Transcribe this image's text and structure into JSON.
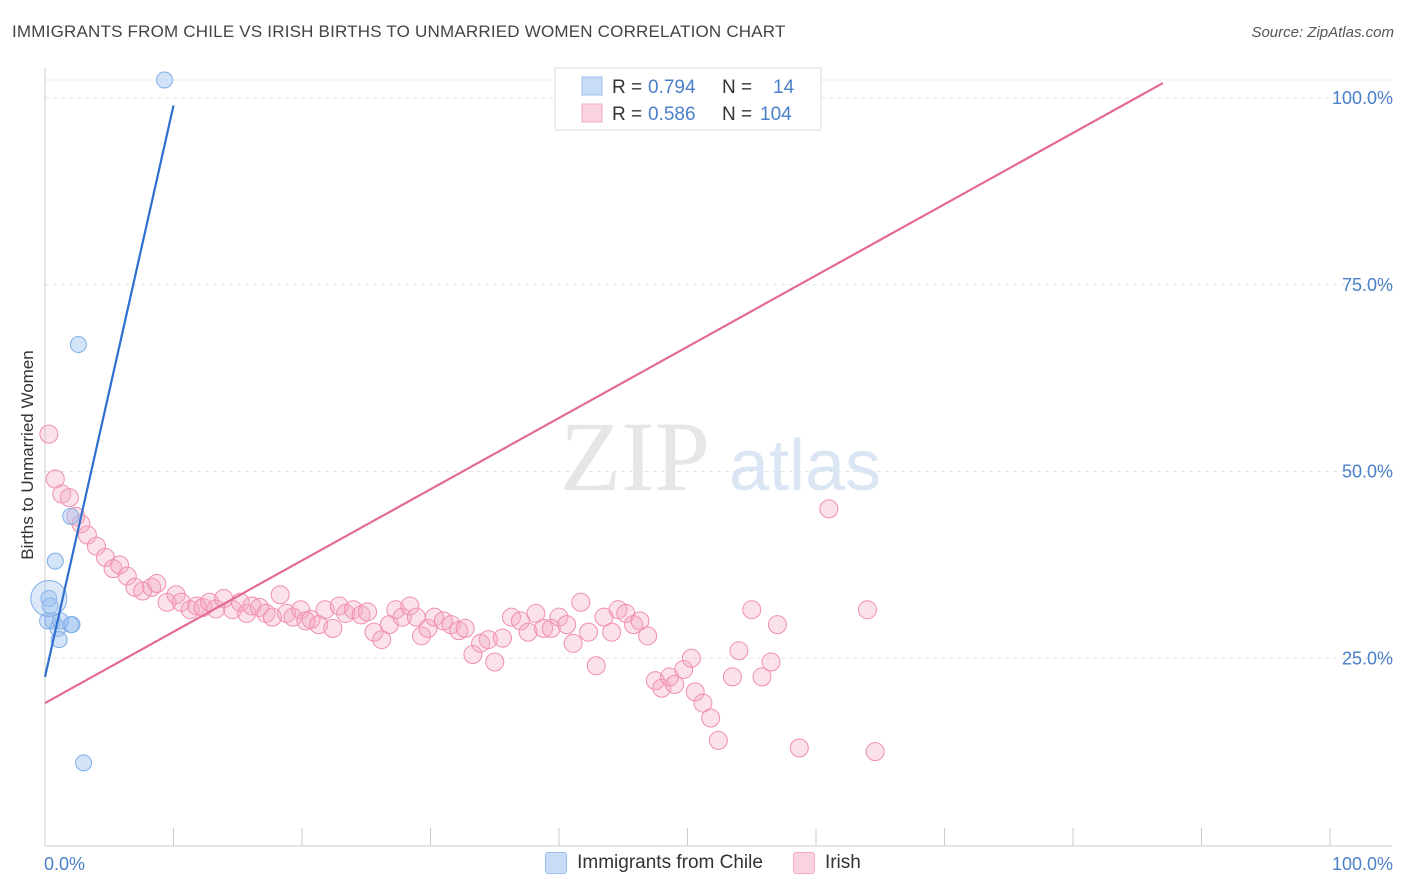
{
  "title": "IMMIGRANTS FROM CHILE VS IRISH BIRTHS TO UNMARRIED WOMEN CORRELATION CHART",
  "source": "Source: ZipAtlas.com",
  "watermark": {
    "zip": "ZIP",
    "atlas": "atlas"
  },
  "colors": {
    "blue": "#9dc0ef",
    "blue_line": "#2f6fd0",
    "pink": "#f4a9c0",
    "pink_line": "#e36b93",
    "tick": "#4a7fc9"
  },
  "chart_data": {
    "type": "scatter",
    "title": "IMMIGRANTS FROM CHILE VS IRISH BIRTHS TO UNMARRIED WOMEN CORRELATION CHART",
    "xlabel": "",
    "ylabel": "Births to Unmarried Women",
    "xlim": [
      0,
      100
    ],
    "ylim": [
      0,
      100
    ],
    "x_tick_labels": [
      "0.0%",
      "100.0%"
    ],
    "y_ticks": [
      25,
      50,
      75,
      100
    ],
    "y_tick_labels": [
      "25.0%",
      "50.0%",
      "75.0%",
      "100.0%"
    ],
    "legend_top": [
      {
        "r_label": "R = ",
        "r_value": "0.794",
        "n_label": "N = ",
        "n_value": "14"
      },
      {
        "r_label": "R = ",
        "r_value": "0.586",
        "n_label": "N = ",
        "n_value": "104"
      }
    ],
    "series": [
      {
        "name": "Immigrants from Chile",
        "color": "#9dc0ef",
        "trend": [
          [
            0,
            22.5
          ],
          [
            10,
            99
          ]
        ],
        "points": [
          [
            9.3,
            102.5
          ],
          [
            2.6,
            67
          ],
          [
            2.0,
            44
          ],
          [
            0.8,
            38
          ],
          [
            0.3,
            33
          ],
          [
            0.4,
            32
          ],
          [
            0.2,
            30
          ],
          [
            0.6,
            30
          ],
          [
            1.0,
            29
          ],
          [
            2.0,
            29.5
          ],
          [
            2.1,
            29.5
          ],
          [
            1.2,
            30
          ],
          [
            1.1,
            27.5
          ],
          [
            3.0,
            11
          ]
        ]
      },
      {
        "name": "Irish",
        "color": "#f4a9c0",
        "trend": [
          [
            0,
            19
          ],
          [
            87,
            102
          ]
        ],
        "points": [
          [
            0.3,
            55
          ],
          [
            0.8,
            49
          ],
          [
            1.3,
            47
          ],
          [
            1.9,
            46.5
          ],
          [
            2.4,
            44
          ],
          [
            2.8,
            43
          ],
          [
            3.3,
            41.5
          ],
          [
            4.0,
            40
          ],
          [
            4.7,
            38.5
          ],
          [
            5.3,
            37
          ],
          [
            5.8,
            37.5
          ],
          [
            6.4,
            36
          ],
          [
            7.0,
            34.5
          ],
          [
            7.6,
            34
          ],
          [
            8.3,
            34.5
          ],
          [
            8.7,
            35
          ],
          [
            9.5,
            32.5
          ],
          [
            10.2,
            33.5
          ],
          [
            10.6,
            32.5
          ],
          [
            11.3,
            31.5
          ],
          [
            11.8,
            32
          ],
          [
            12.3,
            31.8
          ],
          [
            12.8,
            32.5
          ],
          [
            13.3,
            31.6
          ],
          [
            13.9,
            33
          ],
          [
            14.6,
            31.5
          ],
          [
            15.2,
            32.5
          ],
          [
            15.7,
            31
          ],
          [
            16.1,
            32
          ],
          [
            16.7,
            31.8
          ],
          [
            17.2,
            31
          ],
          [
            17.7,
            30.5
          ],
          [
            18.3,
            33.5
          ],
          [
            18.8,
            31
          ],
          [
            19.3,
            30.5
          ],
          [
            19.9,
            31.5
          ],
          [
            20.3,
            30
          ],
          [
            20.7,
            30.2
          ],
          [
            21.3,
            29.5
          ],
          [
            21.8,
            31.5
          ],
          [
            22.4,
            29
          ],
          [
            22.9,
            32
          ],
          [
            23.4,
            31
          ],
          [
            24.0,
            31.5
          ],
          [
            24.6,
            30.8
          ],
          [
            25.1,
            31.2
          ],
          [
            25.6,
            28.5
          ],
          [
            26.2,
            27.5
          ],
          [
            26.8,
            29.5
          ],
          [
            27.3,
            31.5
          ],
          [
            27.8,
            30.5
          ],
          [
            28.4,
            32
          ],
          [
            28.9,
            30.5
          ],
          [
            29.3,
            28
          ],
          [
            29.8,
            29
          ],
          [
            30.3,
            30.5
          ],
          [
            31.0,
            30
          ],
          [
            31.6,
            29.5
          ],
          [
            32.2,
            28.7
          ],
          [
            32.7,
            29
          ],
          [
            33.3,
            25.5
          ],
          [
            33.9,
            27
          ],
          [
            34.5,
            27.5
          ],
          [
            35.0,
            24.5
          ],
          [
            35.6,
            27.7
          ],
          [
            36.3,
            30.5
          ],
          [
            37.0,
            30
          ],
          [
            37.6,
            28.5
          ],
          [
            38.2,
            31
          ],
          [
            38.8,
            29
          ],
          [
            39.4,
            29
          ],
          [
            40.0,
            30.5
          ],
          [
            40.6,
            29.5
          ],
          [
            41.1,
            27
          ],
          [
            41.7,
            32.5
          ],
          [
            42.3,
            28.5
          ],
          [
            42.9,
            24
          ],
          [
            43.5,
            30.5
          ],
          [
            44.1,
            28.5
          ],
          [
            44.6,
            31.5
          ],
          [
            45.2,
            31
          ],
          [
            45.8,
            29.5
          ],
          [
            46.3,
            30
          ],
          [
            46.9,
            28
          ],
          [
            47.5,
            22
          ],
          [
            48.0,
            21
          ],
          [
            48.6,
            22.5
          ],
          [
            49.0,
            21.5
          ],
          [
            49.7,
            23.5
          ],
          [
            50.3,
            25
          ],
          [
            50.6,
            20.5
          ],
          [
            51.2,
            19
          ],
          [
            51.8,
            17
          ],
          [
            52.4,
            14
          ],
          [
            53.5,
            22.5
          ],
          [
            54.0,
            26
          ],
          [
            55.0,
            31.5
          ],
          [
            55.8,
            22.5
          ],
          [
            56.5,
            24.5
          ],
          [
            57.0,
            29.5
          ],
          [
            58.7,
            13
          ],
          [
            61.0,
            45
          ],
          [
            64.0,
            31.5
          ],
          [
            64.6,
            12.5
          ]
        ]
      }
    ]
  },
  "bottom_legend": [
    {
      "label": "Immigrants from Chile",
      "color": "#9dc0ef"
    },
    {
      "label": "Irish",
      "color": "#f4a9c0"
    }
  ]
}
